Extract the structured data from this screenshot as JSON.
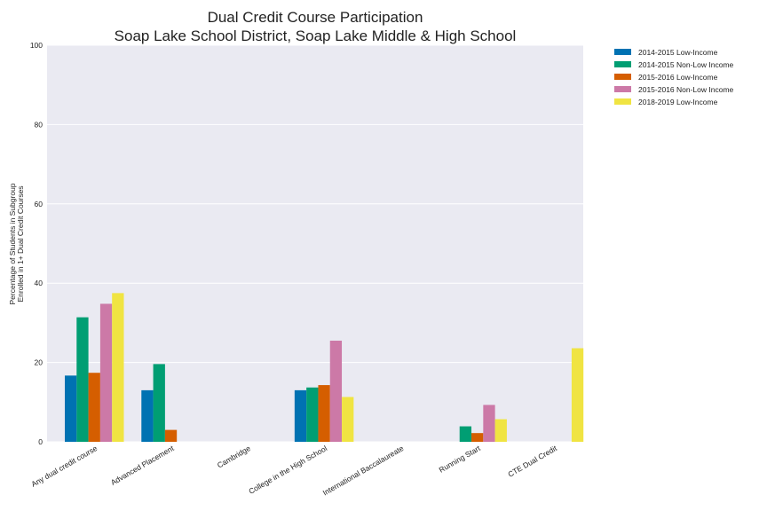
{
  "chart_data": {
    "type": "bar",
    "title": [
      "Dual Credit Course Participation",
      "Soap Lake School District, Soap Lake Middle & High School"
    ],
    "ylabel": [
      "Percentage of Students in Subgroup",
      "Enrolled in 1+ Dual Credit Courses"
    ],
    "xlabel": "",
    "ylim": [
      0,
      100
    ],
    "yticks": [
      0,
      20,
      40,
      60,
      80,
      100
    ],
    "grid": true,
    "legend_position": "outside top-right",
    "categories": [
      "Any dual credit course",
      "Advanced Placement",
      "Cambridge",
      "College in the High School",
      "International Baccalaureate",
      "Running Start",
      "CTE Dual Credit"
    ],
    "series": [
      {
        "name": "2014-2015 Low-Income",
        "color": "#0072b2",
        "values": [
          16.7,
          13.0,
          0,
          13.0,
          0,
          0,
          0
        ]
      },
      {
        "name": "2014-2015 Non-Low Income",
        "color": "#009e73",
        "values": [
          31.4,
          19.6,
          0,
          13.7,
          0,
          3.9,
          0
        ]
      },
      {
        "name": "2015-2016 Low-Income",
        "color": "#d55e00",
        "values": [
          17.4,
          3.0,
          0,
          14.3,
          0,
          2.2,
          0
        ]
      },
      {
        "name": "2015-2016 Non-Low Income",
        "color": "#cc79a7",
        "values": [
          34.8,
          0,
          0,
          25.5,
          0,
          9.3,
          0
        ]
      },
      {
        "name": "2018-2019 Low-Income",
        "color": "#f0e442",
        "values": [
          37.5,
          0,
          0,
          11.3,
          0,
          5.7,
          23.6
        ]
      }
    ],
    "colors": {
      "plot_background": "#eaeaf2",
      "grid": "#ffffff"
    }
  }
}
